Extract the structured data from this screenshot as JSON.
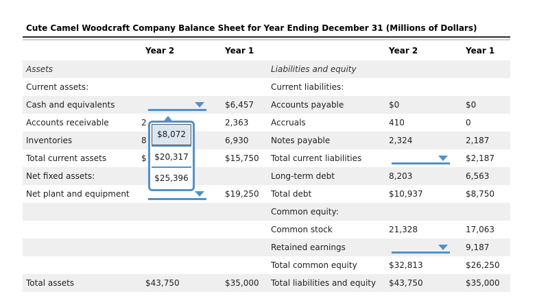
{
  "title": "Cute Camel Woodcraft Company Balance Sheet for Year Ending December 31 (Millions of Dollars)",
  "table": {
    "columns": [
      "",
      "Year 2",
      "Year 1",
      "",
      "Year 2",
      "Year 1"
    ],
    "rows": [
      {
        "cells": [
          "Assets",
          "",
          "",
          "Liabilities and equity",
          "",
          ""
        ],
        "italic": true
      },
      {
        "cells": [
          "Current assets:",
          "",
          "",
          "Current liabilities:",
          "",
          ""
        ]
      },
      {
        "cells": [
          "Cash and equivalents",
          {
            "dropdown": true
          },
          "$6,457",
          "Accounts payable",
          "$0",
          "$0"
        ]
      },
      {
        "cells": [
          "Accounts receivable",
          {
            "fragment": "2"
          },
          "2,363",
          "Accruals",
          "410",
          "0"
        ]
      },
      {
        "cells": [
          "Inventories",
          {
            "fragment": "8"
          },
          "6,930",
          "Notes payable",
          "2,324",
          "2,187"
        ]
      },
      {
        "cells": [
          "Total current assets",
          {
            "fragment": "$"
          },
          "$15,750",
          "Total current liabilities",
          {
            "dropdown": true
          },
          "$2,187"
        ]
      },
      {
        "cells": [
          "Net fixed assets:",
          "",
          "",
          "Long-term debt",
          "8,203",
          "6,563"
        ]
      },
      {
        "cells": [
          "Net plant and equipment",
          {
            "dropdown": true
          },
          "$19,250",
          "Total debt",
          "$10,937",
          "$8,750"
        ]
      },
      {
        "cells": [
          "",
          "",
          "",
          "Common equity:",
          "",
          ""
        ]
      },
      {
        "cells": [
          "",
          "",
          "",
          "Common stock",
          "21,328",
          "17,063"
        ]
      },
      {
        "cells": [
          "",
          "",
          "",
          "Retained earnings",
          {
            "dropdown": true
          },
          "9,187"
        ]
      },
      {
        "cells": [
          "",
          "",
          "",
          "Total common equity",
          "$32,813",
          "$26,250"
        ]
      },
      {
        "cells": [
          "Total assets",
          "$43,750",
          "$35,000",
          "Total liabilities and equity",
          "$43,750",
          "$35,000"
        ]
      }
    ]
  },
  "dropdown_popup": {
    "options": [
      "$8,072",
      "$20,317",
      "$25,396"
    ],
    "highlighted_index": 0
  },
  "colors": {
    "accent_blue": "#5291c7",
    "row_stripe": "#efefef",
    "option_highlight": "#dce6ef"
  }
}
